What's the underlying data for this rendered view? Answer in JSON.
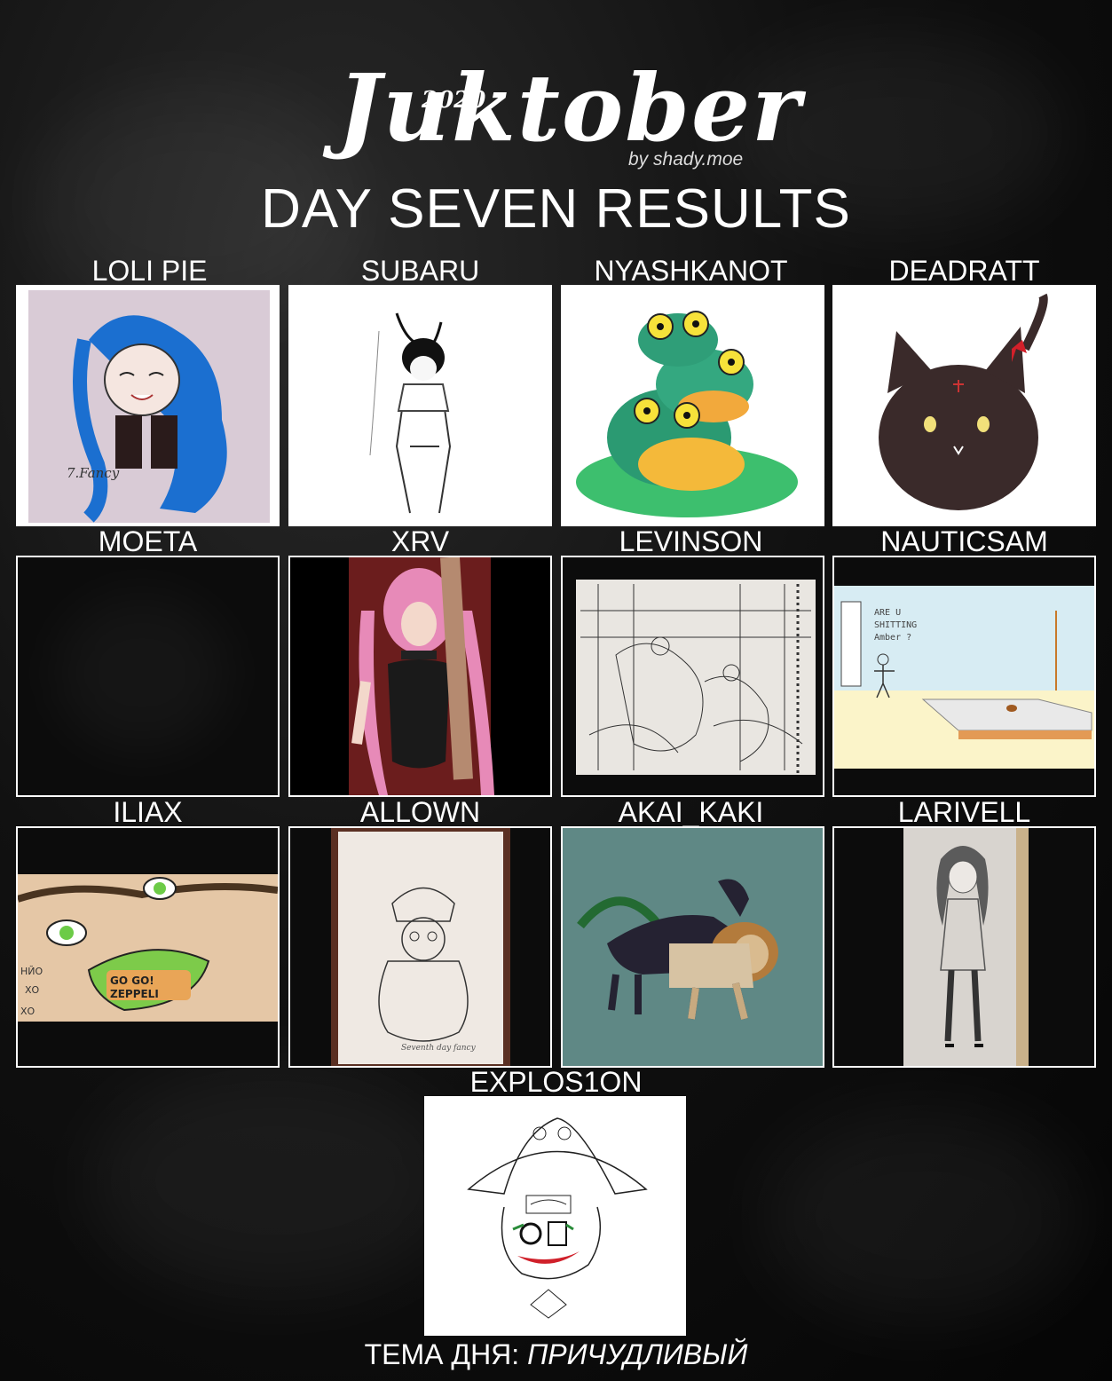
{
  "logo": {
    "word": "Juktober",
    "year": "2020",
    "by": "by shady.moe"
  },
  "headline": "DAY SEVEN RESULTS",
  "entries": [
    {
      "name": "LOLI PIE",
      "art": "hatsune-miku-drawing"
    },
    {
      "name": "SUBARU",
      "art": "bunny-eared-girl-sketch"
    },
    {
      "name": "NYASHKANOT",
      "art": "stacked-frogs-painting"
    },
    {
      "name": "DEADRATT",
      "art": "black-cat-blob-drawing"
    },
    {
      "name": "MOETA",
      "art": "empty"
    },
    {
      "name": "XRV",
      "art": "bunny-suit-woman-drawing"
    },
    {
      "name": "LEVINSON",
      "art": "ballroom-ink-sketch"
    },
    {
      "name": "NAUTICSAM",
      "art": "stick-figure-room-drawing"
    },
    {
      "name": "ILIAX",
      "art": "jojo-face-closeup"
    },
    {
      "name": "ALLOWN",
      "art": "cat-in-hat-sketch"
    },
    {
      "name": "AKAI_KAKI",
      "art": "chimera-painting"
    },
    {
      "name": "LARIVELL",
      "art": "pencil-girl-sketch"
    },
    {
      "name": "EXPLOS1ON",
      "art": "witch-hat-clown-drawing"
    }
  ],
  "footer": {
    "label": "ТЕМА ДНЯ: ",
    "theme": "ПРИЧУДЛИВЫЙ"
  }
}
